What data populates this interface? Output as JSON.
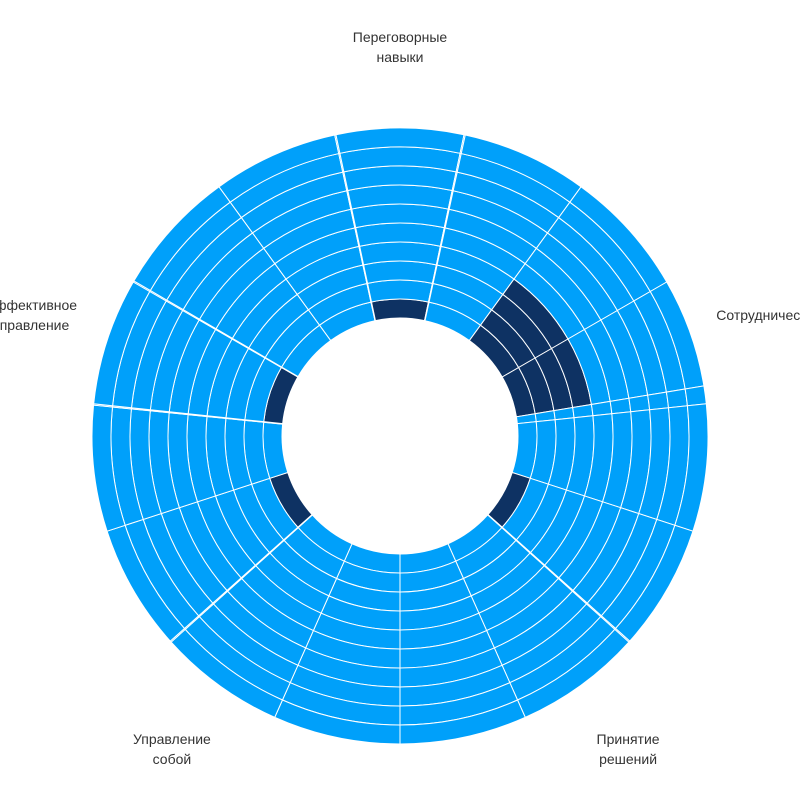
{
  "chart_data": {
    "type": "radial-bar",
    "categories": [
      "Переговорные навыки",
      "Сотрудничество",
      "Принятие решений",
      "Управление собой",
      "Эффективное управление"
    ],
    "label_lines": [
      [
        "Переговорные",
        "навыки"
      ],
      [
        "Сотрудничество"
      ],
      [
        "Принятие",
        "решений"
      ],
      [
        "Управление",
        "собой"
      ],
      [
        "Эффективное",
        "управление"
      ]
    ],
    "levels": 10,
    "highlight": [
      {
        "category": "Переговорные навыки",
        "level": 1,
        "from": 0.33,
        "to": 0.67
      },
      {
        "category": "Сотрудничество",
        "from_level": 1,
        "to_level": 4,
        "from": 0.0,
        "to": 0.62
      },
      {
        "category": "Принятие решений",
        "level": 1,
        "from": 0.0,
        "to": 0.33
      },
      {
        "category": "Управление собой",
        "level": 1,
        "from": 0.67,
        "to": 1.0
      },
      {
        "category": "Эффективное управление",
        "level": 1,
        "from": 0.33,
        "to": 0.67
      }
    ],
    "colors": {
      "base": "#00a0fa",
      "highlight": "#0e3263",
      "separator": "#ffffff"
    }
  }
}
